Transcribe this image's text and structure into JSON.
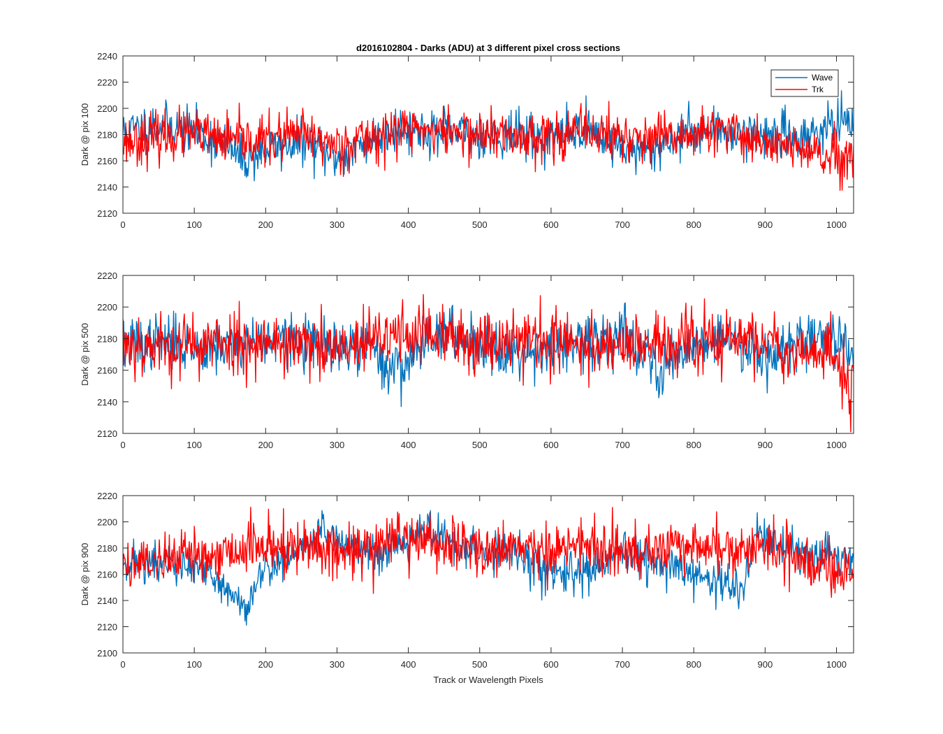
{
  "figure": {
    "title": "d2016102804 - Darks (ADU) at 3 different pixel cross sections",
    "xlabel": "Track or Wavelength Pixels"
  },
  "colors": {
    "wave": "#0072BD",
    "trk": "#FF0000",
    "axes": "#262626"
  },
  "chart_data": [
    {
      "type": "line",
      "ylabel": "Dark @ pix 100",
      "xlim": [
        0,
        1024
      ],
      "ylim": [
        2120,
        2240
      ],
      "xticks": [
        0,
        100,
        200,
        300,
        400,
        500,
        600,
        700,
        800,
        900,
        1000
      ],
      "yticks": [
        2120,
        2140,
        2160,
        2180,
        2200,
        2220,
        2240
      ],
      "legend": {
        "placement": "top-right",
        "entries": [
          "Wave",
          "Trk"
        ]
      },
      "grid": false,
      "series": [
        {
          "name": "Wave",
          "color": "#0072BD",
          "amplitude": 10,
          "seed": 11,
          "profile": [
            [
              0,
              2182
            ],
            [
              50,
              2188
            ],
            [
              100,
              2182
            ],
            [
              150,
              2170
            ],
            [
              170,
              2160
            ],
            [
              200,
              2168
            ],
            [
              250,
              2175
            ],
            [
              300,
              2162
            ],
            [
              320,
              2168
            ],
            [
              380,
              2185
            ],
            [
              450,
              2182
            ],
            [
              500,
              2180
            ],
            [
              550,
              2180
            ],
            [
              600,
              2178
            ],
            [
              650,
              2185
            ],
            [
              700,
              2170
            ],
            [
              730,
              2165
            ],
            [
              800,
              2185
            ],
            [
              850,
              2182
            ],
            [
              900,
              2180
            ],
            [
              950,
              2178
            ],
            [
              1000,
              2188
            ],
            [
              1024,
              2185
            ]
          ]
        },
        {
          "name": "Trk",
          "color": "#FF0000",
          "amplitude": 11,
          "seed": 23,
          "profile": [
            [
              0,
              2175
            ],
            [
              50,
              2178
            ],
            [
              100,
              2180
            ],
            [
              150,
              2175
            ],
            [
              200,
              2176
            ],
            [
              250,
              2180
            ],
            [
              300,
              2172
            ],
            [
              350,
              2178
            ],
            [
              400,
              2185
            ],
            [
              450,
              2182
            ],
            [
              500,
              2180
            ],
            [
              550,
              2178
            ],
            [
              600,
              2180
            ],
            [
              650,
              2182
            ],
            [
              700,
              2178
            ],
            [
              750,
              2175
            ],
            [
              800,
              2180
            ],
            [
              850,
              2182
            ],
            [
              900,
              2175
            ],
            [
              950,
              2168
            ],
            [
              1000,
              2160
            ],
            [
              1024,
              2158
            ]
          ]
        }
      ]
    },
    {
      "type": "line",
      "ylabel": "Dark @ pix 500",
      "xlim": [
        0,
        1024
      ],
      "ylim": [
        2120,
        2220
      ],
      "xticks": [
        0,
        100,
        200,
        300,
        400,
        500,
        600,
        700,
        800,
        900,
        1000
      ],
      "yticks": [
        2120,
        2140,
        2160,
        2180,
        2200,
        2220
      ],
      "grid": false,
      "series": [
        {
          "name": "Wave",
          "color": "#0072BD",
          "amplitude": 10,
          "seed": 37,
          "profile": [
            [
              0,
              2175
            ],
            [
              50,
              2178
            ],
            [
              100,
              2175
            ],
            [
              150,
              2176
            ],
            [
              200,
              2180
            ],
            [
              250,
              2178
            ],
            [
              300,
              2172
            ],
            [
              350,
              2175
            ],
            [
              370,
              2160
            ],
            [
              400,
              2165
            ],
            [
              430,
              2185
            ],
            [
              500,
              2178
            ],
            [
              550,
              2172
            ],
            [
              600,
              2175
            ],
            [
              650,
              2175
            ],
            [
              700,
              2185
            ],
            [
              720,
              2175
            ],
            [
              750,
              2160
            ],
            [
              800,
              2178
            ],
            [
              850,
              2180
            ],
            [
              900,
              2170
            ],
            [
              950,
              2178
            ],
            [
              1000,
              2183
            ],
            [
              1024,
              2172
            ]
          ]
        },
        {
          "name": "Trk",
          "color": "#FF0000",
          "amplitude": 12,
          "seed": 53,
          "profile": [
            [
              0,
              2178
            ],
            [
              50,
              2175
            ],
            [
              100,
              2176
            ],
            [
              150,
              2178
            ],
            [
              200,
              2178
            ],
            [
              250,
              2176
            ],
            [
              300,
              2172
            ],
            [
              350,
              2178
            ],
            [
              400,
              2185
            ],
            [
              450,
              2180
            ],
            [
              500,
              2178
            ],
            [
              550,
              2182
            ],
            [
              600,
              2178
            ],
            [
              650,
              2175
            ],
            [
              700,
              2178
            ],
            [
              750,
              2175
            ],
            [
              800,
              2176
            ],
            [
              850,
              2180
            ],
            [
              900,
              2178
            ],
            [
              950,
              2172
            ],
            [
              1000,
              2168
            ],
            [
              1024,
              2145
            ]
          ]
        }
      ]
    },
    {
      "type": "line",
      "ylabel": "Dark @ pix 900",
      "xlim": [
        0,
        1024
      ],
      "ylim": [
        2100,
        2220
      ],
      "xticks": [
        0,
        100,
        200,
        300,
        400,
        500,
        600,
        700,
        800,
        900,
        1000
      ],
      "yticks": [
        2100,
        2120,
        2140,
        2160,
        2180,
        2200,
        2220
      ],
      "grid": false,
      "series": [
        {
          "name": "Wave",
          "color": "#0072BD",
          "amplitude": 9,
          "seed": 71,
          "profile": [
            [
              0,
              2170
            ],
            [
              50,
              2168
            ],
            [
              100,
              2165
            ],
            [
              140,
              2150
            ],
            [
              170,
              2135
            ],
            [
              200,
              2165
            ],
            [
              250,
              2178
            ],
            [
              280,
              2195
            ],
            [
              300,
              2185
            ],
            [
              350,
              2175
            ],
            [
              400,
              2188
            ],
            [
              430,
              2195
            ],
            [
              470,
              2180
            ],
            [
              500,
              2178
            ],
            [
              550,
              2175
            ],
            [
              580,
              2165
            ],
            [
              650,
              2160
            ],
            [
              700,
              2175
            ],
            [
              750,
              2168
            ],
            [
              800,
              2160
            ],
            [
              850,
              2150
            ],
            [
              870,
              2150
            ],
            [
              890,
              2195
            ],
            [
              920,
              2180
            ],
            [
              950,
              2175
            ],
            [
              1000,
              2175
            ],
            [
              1024,
              2172
            ]
          ]
        },
        {
          "name": "Trk",
          "color": "#FF0000",
          "amplitude": 12,
          "seed": 89,
          "profile": [
            [
              0,
              2168
            ],
            [
              50,
              2172
            ],
            [
              100,
              2175
            ],
            [
              150,
              2178
            ],
            [
              200,
              2182
            ],
            [
              250,
              2180
            ],
            [
              300,
              2178
            ],
            [
              350,
              2182
            ],
            [
              400,
              2188
            ],
            [
              450,
              2182
            ],
            [
              500,
              2178
            ],
            [
              550,
              2182
            ],
            [
              600,
              2178
            ],
            [
              650,
              2180
            ],
            [
              700,
              2178
            ],
            [
              750,
              2180
            ],
            [
              800,
              2182
            ],
            [
              850,
              2178
            ],
            [
              900,
              2180
            ],
            [
              950,
              2172
            ],
            [
              1000,
              2162
            ],
            [
              1024,
              2165
            ]
          ]
        }
      ]
    }
  ]
}
